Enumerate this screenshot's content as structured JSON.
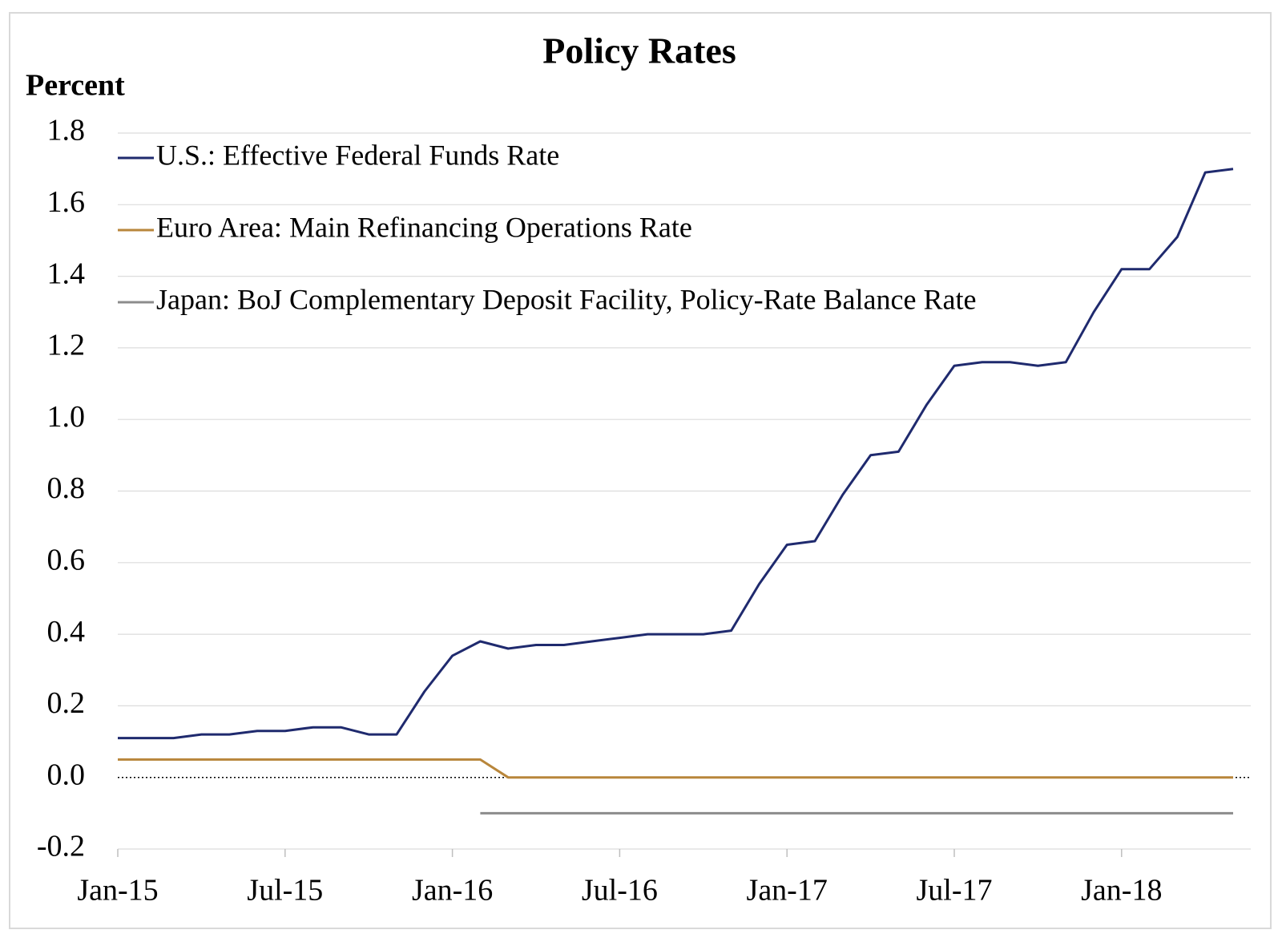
{
  "chart_data": {
    "type": "line",
    "title": "Policy Rates",
    "y_label": "Percent",
    "categories": [
      "Jan-15",
      null,
      null,
      null,
      null,
      null,
      "Jul-15",
      null,
      null,
      null,
      null,
      null,
      "Jan-16",
      null,
      null,
      null,
      null,
      null,
      "Jul-16",
      null,
      null,
      null,
      null,
      null,
      "Jan-17",
      null,
      null,
      null,
      null,
      null,
      "Jul-17",
      null,
      null,
      null,
      null,
      null,
      "Jan-18",
      null,
      null,
      null,
      null
    ],
    "series": [
      {
        "name": "U.S.: Effective Federal Funds Rate",
        "color": "#1f2a6e",
        "values": [
          0.11,
          0.11,
          0.11,
          0.12,
          0.12,
          0.13,
          0.13,
          0.14,
          0.14,
          0.12,
          0.12,
          0.24,
          0.34,
          0.38,
          0.36,
          0.37,
          0.37,
          0.38,
          0.39,
          0.4,
          0.4,
          0.4,
          0.41,
          0.54,
          0.65,
          0.66,
          0.79,
          0.9,
          0.91,
          1.04,
          1.15,
          1.16,
          1.16,
          1.15,
          1.16,
          1.3,
          1.42,
          1.42,
          1.51,
          1.69,
          1.7
        ]
      },
      {
        "name": "Euro Area: Main Refinancing Operations Rate",
        "color": "#b8863b",
        "values": [
          0.05,
          0.05,
          0.05,
          0.05,
          0.05,
          0.05,
          0.05,
          0.05,
          0.05,
          0.05,
          0.05,
          0.05,
          0.05,
          0.05,
          0.0,
          0,
          0,
          0,
          0,
          0,
          0,
          0,
          0,
          0,
          0,
          0,
          0,
          0,
          0,
          0,
          0,
          0,
          0,
          0,
          0,
          0,
          0,
          0,
          0,
          0,
          0
        ]
      },
      {
        "name": "Japan: BoJ Complementary Deposit Facility, Policy-Rate Balance Rate",
        "color": "#8c8c8c",
        "values": [
          null,
          null,
          null,
          null,
          null,
          null,
          null,
          null,
          null,
          null,
          null,
          null,
          null,
          -0.1,
          -0.1,
          -0.1,
          -0.1,
          -0.1,
          -0.1,
          -0.1,
          -0.1,
          -0.1,
          -0.1,
          -0.1,
          -0.1,
          -0.1,
          -0.1,
          -0.1,
          -0.1,
          -0.1,
          -0.1,
          -0.1,
          -0.1,
          -0.1,
          -0.1,
          -0.1,
          -0.1,
          -0.1,
          -0.1,
          -0.1,
          -0.1
        ]
      }
    ],
    "ylim": [
      -0.2,
      1.8
    ],
    "yticks": [
      -0.2,
      {
        "value": 0,
        "label": "0.0"
      },
      0.2,
      0.4,
      0.6,
      0.8,
      {
        "value": 1,
        "label": "1.0"
      },
      1.2,
      1.4,
      1.6,
      1.8
    ],
    "grid": true,
    "legend": "upper left"
  }
}
